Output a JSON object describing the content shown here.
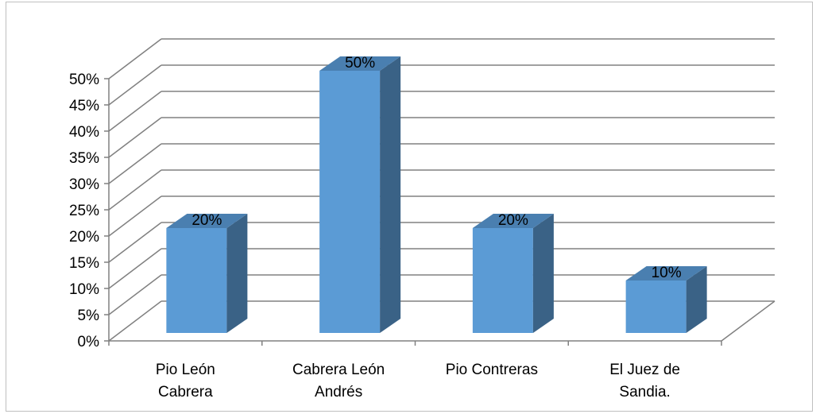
{
  "chart_data": {
    "type": "bar",
    "style": "3d-column",
    "categories": [
      [
        "Pio León",
        "Cabrera"
      ],
      [
        "Cabrera León",
        "Andrés"
      ],
      [
        "Pio Contreras"
      ],
      [
        "El Juez de",
        "Sandia."
      ]
    ],
    "values": [
      0.2,
      0.5,
      0.2,
      0.1
    ],
    "data_labels": [
      "20%",
      "50%",
      "20%",
      "10%"
    ],
    "y_ticks": [
      "0%",
      "5%",
      "10%",
      "15%",
      "20%",
      "25%",
      "30%",
      "35%",
      "40%",
      "45%",
      "50%"
    ],
    "ylim": [
      0,
      0.5
    ],
    "grid": true,
    "legend": "none",
    "colors": {
      "bar_front": "#5b9bd5",
      "bar_top": "#4a7fb0",
      "bar_side": "#3a6286",
      "grid": "#808080",
      "frame": "#bfbfbf"
    }
  }
}
